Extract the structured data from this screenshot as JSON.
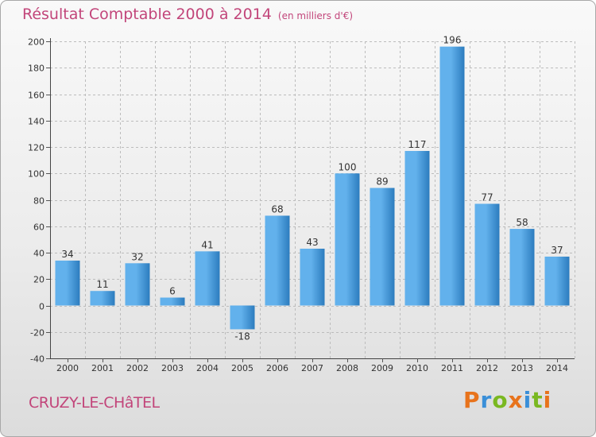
{
  "header": {
    "title": "Résultat Comptable 2000 à 2014",
    "subtitle": "(en milliers d'€)"
  },
  "footer": {
    "commune": "CRUZY-LE-CHâTEL",
    "logo": "Proxiti",
    "logo_colors": [
      "#e8731c",
      "#3a8fd8",
      "#7ab821",
      "#e8731c",
      "#3a8fd8",
      "#7ab821",
      "#e8731c"
    ]
  },
  "colors": {
    "title": "#c2457a",
    "bar_light": "#62b1ec",
    "bar_dark": "#2c7cbe",
    "grid": "#bcbcbc",
    "axis_text": "#333333"
  },
  "chart_data": {
    "type": "bar",
    "title": "Résultat Comptable 2000 à 2014",
    "ylabel": "en milliers d'€",
    "xlabel": "",
    "categories": [
      "2000",
      "2001",
      "2002",
      "2003",
      "2004",
      "2005",
      "2006",
      "2007",
      "2008",
      "2009",
      "2010",
      "2011",
      "2012",
      "2013",
      "2014"
    ],
    "values": [
      34,
      11,
      32,
      6,
      41,
      -18,
      68,
      43,
      100,
      89,
      117,
      196,
      77,
      58,
      37
    ],
    "data_labels": [
      "34",
      "11",
      "32",
      "6",
      "41",
      "-18",
      "68",
      "43",
      "100",
      "89",
      "117",
      "196",
      "77",
      "58",
      "37"
    ],
    "ylim": [
      -40,
      200
    ],
    "yticks": [
      -40,
      -20,
      0,
      20,
      40,
      60,
      80,
      100,
      120,
      140,
      160,
      180,
      200
    ],
    "ytick_labels": [
      "-40",
      "-20",
      "0",
      "20",
      "40",
      "60",
      "80",
      "100",
      "120",
      "140",
      "160",
      "180",
      "200"
    ],
    "grid": true,
    "legend": "none"
  }
}
